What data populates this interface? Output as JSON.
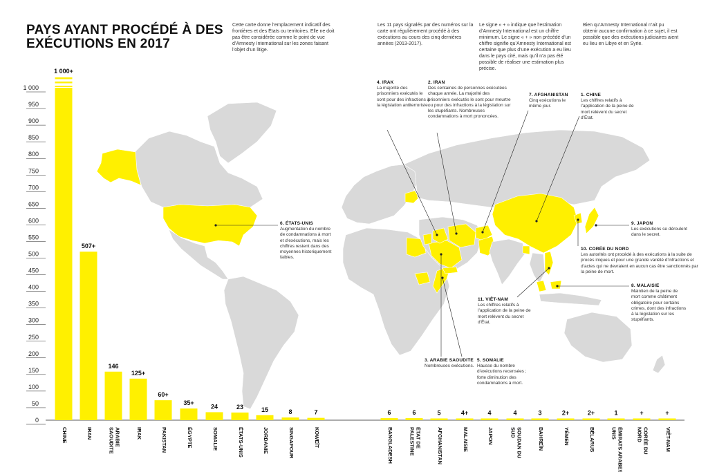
{
  "title_lines": [
    "PAYS AYANT PROCÉDÉ À DES",
    "EXÉCUTIONS EN 2017"
  ],
  "notes": [
    "Cette carte donne l’emplacement indicatif des frontières et des États ou territoires. Elle ne doit pas être considérée comme le point de vue d’Amnesty International sur les zones faisant l’objet d’un litige.",
    "Les 11 pays signalés par des numéros sur la carte ont régulièrement procédé à des exécutions au cours des cinq dernières années (2013-2017).",
    "Le signe « + » indique que l’estimation d’Amnesty International est un chiffre minimum. Le signe « + » non précédé d’un chiffre signifie qu’Amnesty International est certaine que plus d’une exécution a eu lieu dans le pays cité, mais qu’il n’a pas été possible de réaliser une estimation plus précise.",
    "Bien qu’Amnesty International n’ait pu obtenir aucune confirmation à ce sujet, il est possible que des exécutions judiciaires aient eu lieu en Libye et en Syrie."
  ],
  "callouts": {
    "irak": {
      "title": "4. IRAK",
      "text": "La majorité des prisonniers exécutés le sont pour des infractions à la législation antiterroriste."
    },
    "iran": {
      "title": "2. IRAN",
      "text": "Des centaines de personnes exécutées chaque année. La majorité des prisonniers exécutés le sont pour meurtre ou pour des infractions à la législation sur les stupéfiants. Nombreuses condamnations à mort prononcées."
    },
    "afghanistan": {
      "title": "7. AFGHANISTAN",
      "text": "Cinq exécutions le même jour."
    },
    "chine": {
      "title": "1. CHINE",
      "text": "Les chiffres relatifs à l’application de la peine de mort relèvent du secret d’État."
    },
    "etatsunis": {
      "title": "6. ÉTATS-UNIS",
      "text": "Augmentation du nombre de condamnations à mort et d’exécutions, mais les chiffres restent dans des moyennes historiquement faibles."
    },
    "japon": {
      "title": "9. JAPON",
      "text": "Les exécutions se déroulent dans le secret."
    },
    "coree": {
      "title": "10. CORÉE DU NORD",
      "text": "Les autorités ont procédé à des exécutions à la suite de procès iniques et pour une grande variété d’infractions et d’actes qui ne devraient en aucun cas être sanctionnés par la peine de mort."
    },
    "malaisie": {
      "title": "8. MALAISIE",
      "text": "Maintien de la peine de mort comme châtiment obligatoire pour certains crimes, dont des infractions à la législation sur les stupéfiants."
    },
    "vietnam": {
      "title": "11. VIÊT-NAM",
      "text": "Les chiffres relatifs à l’application de la peine de mort relèvent du secret d’État."
    },
    "arabie": {
      "title": "3. ARABIE SAOUDITE",
      "text": "Nombreuses exécutions."
    },
    "somalie": {
      "title": "5. SOMALIE",
      "text": "Hausse du nombre d’exécutions recensées ; forte diminution des condamnations à mort."
    }
  },
  "colors": {
    "bar": "#fff000",
    "land": "#d9d9d9",
    "text": "#111111"
  },
  "chart_data": {
    "type": "bar",
    "title": "PAYS AYANT PROCÉDÉ À DES EXÉCUTIONS EN 2017",
    "ylim": [
      0,
      1000
    ],
    "yticks": [
      0,
      50,
      100,
      150,
      200,
      250,
      300,
      350,
      400,
      450,
      500,
      550,
      600,
      650,
      700,
      750,
      800,
      850,
      900,
      950,
      1000
    ],
    "broken_axis_top": true,
    "bars": [
      {
        "category": "CHINE",
        "value": 1000,
        "label": "1 000+"
      },
      {
        "category": "IRAN",
        "value": 507,
        "label": "507+"
      },
      {
        "category": "ARABIE SAOUDITE",
        "value": 146,
        "label": "146"
      },
      {
        "category": "IRAK",
        "value": 125,
        "label": "125+"
      },
      {
        "category": "PAKISTAN",
        "value": 60,
        "label": "60+"
      },
      {
        "category": "ÉGYPTE",
        "value": 35,
        "label": "35+"
      },
      {
        "category": "SOMALIE",
        "value": 24,
        "label": "24"
      },
      {
        "category": "ÉTATS-UNIS",
        "value": 23,
        "label": "23"
      },
      {
        "category": "JORDANIE",
        "value": 15,
        "label": "15"
      },
      {
        "category": "SINGAPOUR",
        "value": 8,
        "label": "8"
      },
      {
        "category": "KOWEÏT",
        "value": 7,
        "label": "7"
      },
      {
        "category": "BANGLADESH",
        "value": 6,
        "label": "6"
      },
      {
        "category": "ÉTAT DE PALESTINE",
        "value": 6,
        "label": "6"
      },
      {
        "category": "AFGHANISTAN",
        "value": 5,
        "label": "5"
      },
      {
        "category": "MALAISIE",
        "value": 4,
        "label": "4+"
      },
      {
        "category": "JAPON",
        "value": 4,
        "label": "4"
      },
      {
        "category": "SOUDAN DU SUD",
        "value": 4,
        "label": "4"
      },
      {
        "category": "BAHREÏN",
        "value": 3,
        "label": "3"
      },
      {
        "category": "YÉMEN",
        "value": 2,
        "label": "2+"
      },
      {
        "category": "BÉLARUS",
        "value": 2,
        "label": "2+"
      },
      {
        "category": "ÉMIRATS ARABES UNIS",
        "value": 1,
        "label": "1"
      },
      {
        "category": "CORÉE DU NORD",
        "value": 1,
        "label": "+"
      },
      {
        "category": "VIÊT-NAM",
        "value": 1,
        "label": "+"
      }
    ]
  }
}
